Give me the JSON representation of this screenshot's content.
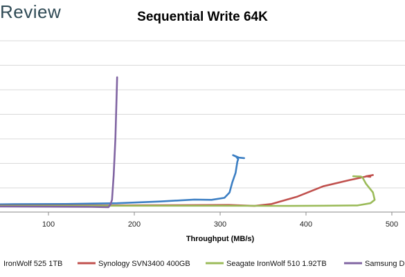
{
  "brand": {
    "logo_text": "Review"
  },
  "chart_data": {
    "type": "line",
    "title": "Sequential Write 64K",
    "xlabel": "Throughput (MB/s)",
    "ylabel": "",
    "xlim": [
      0,
      500
    ],
    "x_ticks": [
      "100",
      "200",
      "300",
      "400",
      "500"
    ],
    "grid": "horizontal",
    "legend_position": "bottom",
    "series": [
      {
        "name": "IronWolf 525 1TB",
        "color": "#3b7ec3",
        "points": [
          [
            0,
            3
          ],
          [
            60,
            3.2
          ],
          [
            120,
            3.3
          ],
          [
            180,
            3.6
          ],
          [
            230,
            4.3
          ],
          [
            270,
            5.1
          ],
          [
            290,
            5.0
          ],
          [
            305,
            5.8
          ],
          [
            311,
            8.0
          ],
          [
            314,
            12.0
          ],
          [
            318,
            16.0
          ],
          [
            320,
            20.5
          ],
          [
            321,
            21.5
          ],
          [
            319,
            22.5
          ],
          [
            315,
            23.2
          ],
          [
            322,
            22.2
          ],
          [
            328,
            22.0
          ]
        ]
      },
      {
        "name": "Synology SVN3400 400GB",
        "color": "#c0504d",
        "points": [
          [
            0,
            2.6
          ],
          [
            150,
            2.7
          ],
          [
            250,
            2.8
          ],
          [
            310,
            2.9
          ],
          [
            340,
            2.5
          ],
          [
            360,
            3.3
          ],
          [
            390,
            6.3
          ],
          [
            420,
            10.5
          ],
          [
            450,
            13.0
          ],
          [
            470,
            14.5
          ],
          [
            478,
            15.1
          ],
          [
            470,
            14.6
          ],
          [
            475,
            14.4
          ]
        ]
      },
      {
        "name": "Seagate IronWolf 510 1.92TB",
        "color": "#9bbb59",
        "points": [
          [
            0,
            2.5
          ],
          [
            200,
            2.6
          ],
          [
            300,
            2.6
          ],
          [
            380,
            2.5
          ],
          [
            420,
            2.6
          ],
          [
            460,
            2.7
          ],
          [
            475,
            3.6
          ],
          [
            480,
            5.0
          ],
          [
            478,
            8.0
          ],
          [
            470,
            11.5
          ],
          [
            466,
            14.0
          ],
          [
            464,
            14.5
          ],
          [
            455,
            14.6
          ],
          [
            460,
            14.5
          ]
        ]
      },
      {
        "name": "Samsung D",
        "color": "#8064a2",
        "points": [
          [
            0,
            2.3
          ],
          [
            100,
            2.2
          ],
          [
            150,
            2.1
          ],
          [
            170,
            2.0
          ],
          [
            172,
            3.0
          ],
          [
            174,
            5.0
          ],
          [
            176,
            15.0
          ],
          [
            178,
            30.0
          ],
          [
            180,
            55.0
          ]
        ]
      }
    ]
  }
}
